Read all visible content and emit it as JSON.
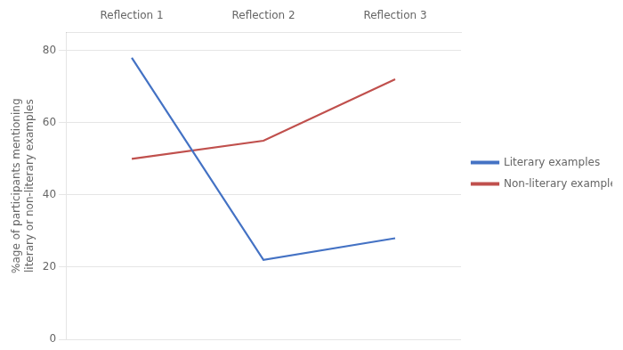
{
  "chart_data": {
    "type": "line",
    "categories": [
      "Reflection 1",
      "Reflection 2",
      "Reflection 3"
    ],
    "series": [
      {
        "name": "Literary examples",
        "color": "#4472C4",
        "values": [
          78,
          22,
          28
        ]
      },
      {
        "name": "Non-literary examples",
        "color": "#C0504D",
        "values": [
          50,
          55,
          72
        ]
      }
    ],
    "ylabel": "%age of participants mentioning\nliterary or non-literary examples",
    "ylim": [
      0,
      85
    ],
    "yticks": [
      0,
      20,
      40,
      60,
      80
    ],
    "grid": true,
    "legend": "right"
  }
}
